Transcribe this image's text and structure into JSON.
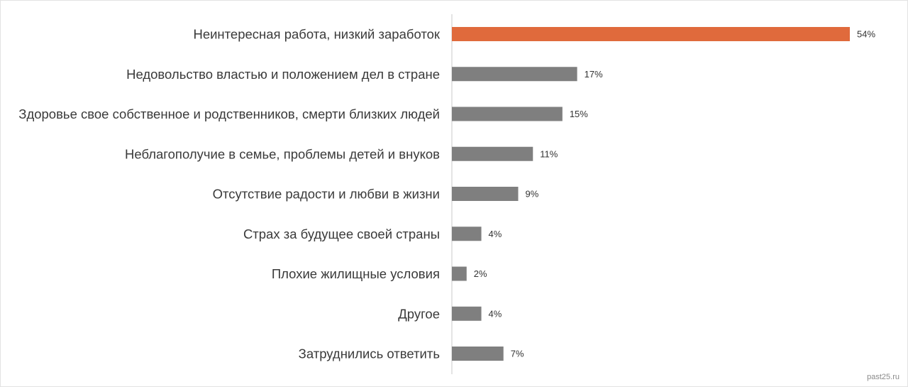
{
  "chart_data": {
    "type": "bar",
    "orientation": "horizontal",
    "title": "",
    "xlabel": "",
    "ylabel": "",
    "xlim": [
      0,
      54
    ],
    "grid": false,
    "legend": "none",
    "value_suffix": "%",
    "categories": [
      "Неинтересная работа, низкий заработок",
      "Недовольство властью и положением дел в стране",
      "Здоровье свое собственное и родственников, смерти близких людей",
      "Неблагополучие в семье, проблемы детей и внуков",
      "Отсутствие радости и любви в жизни",
      "Страх за будущее своей страны",
      "Плохие жилищные условия",
      "Другое",
      "Затруднились ответить"
    ],
    "values": [
      54,
      17,
      15,
      11,
      9,
      4,
      2,
      4,
      7
    ],
    "highlight_index": 0,
    "colors": {
      "bar": "#7f7f7f",
      "highlight": "#e06a3c",
      "axis": "#c8c8c8"
    }
  },
  "watermark": "past25.ru"
}
